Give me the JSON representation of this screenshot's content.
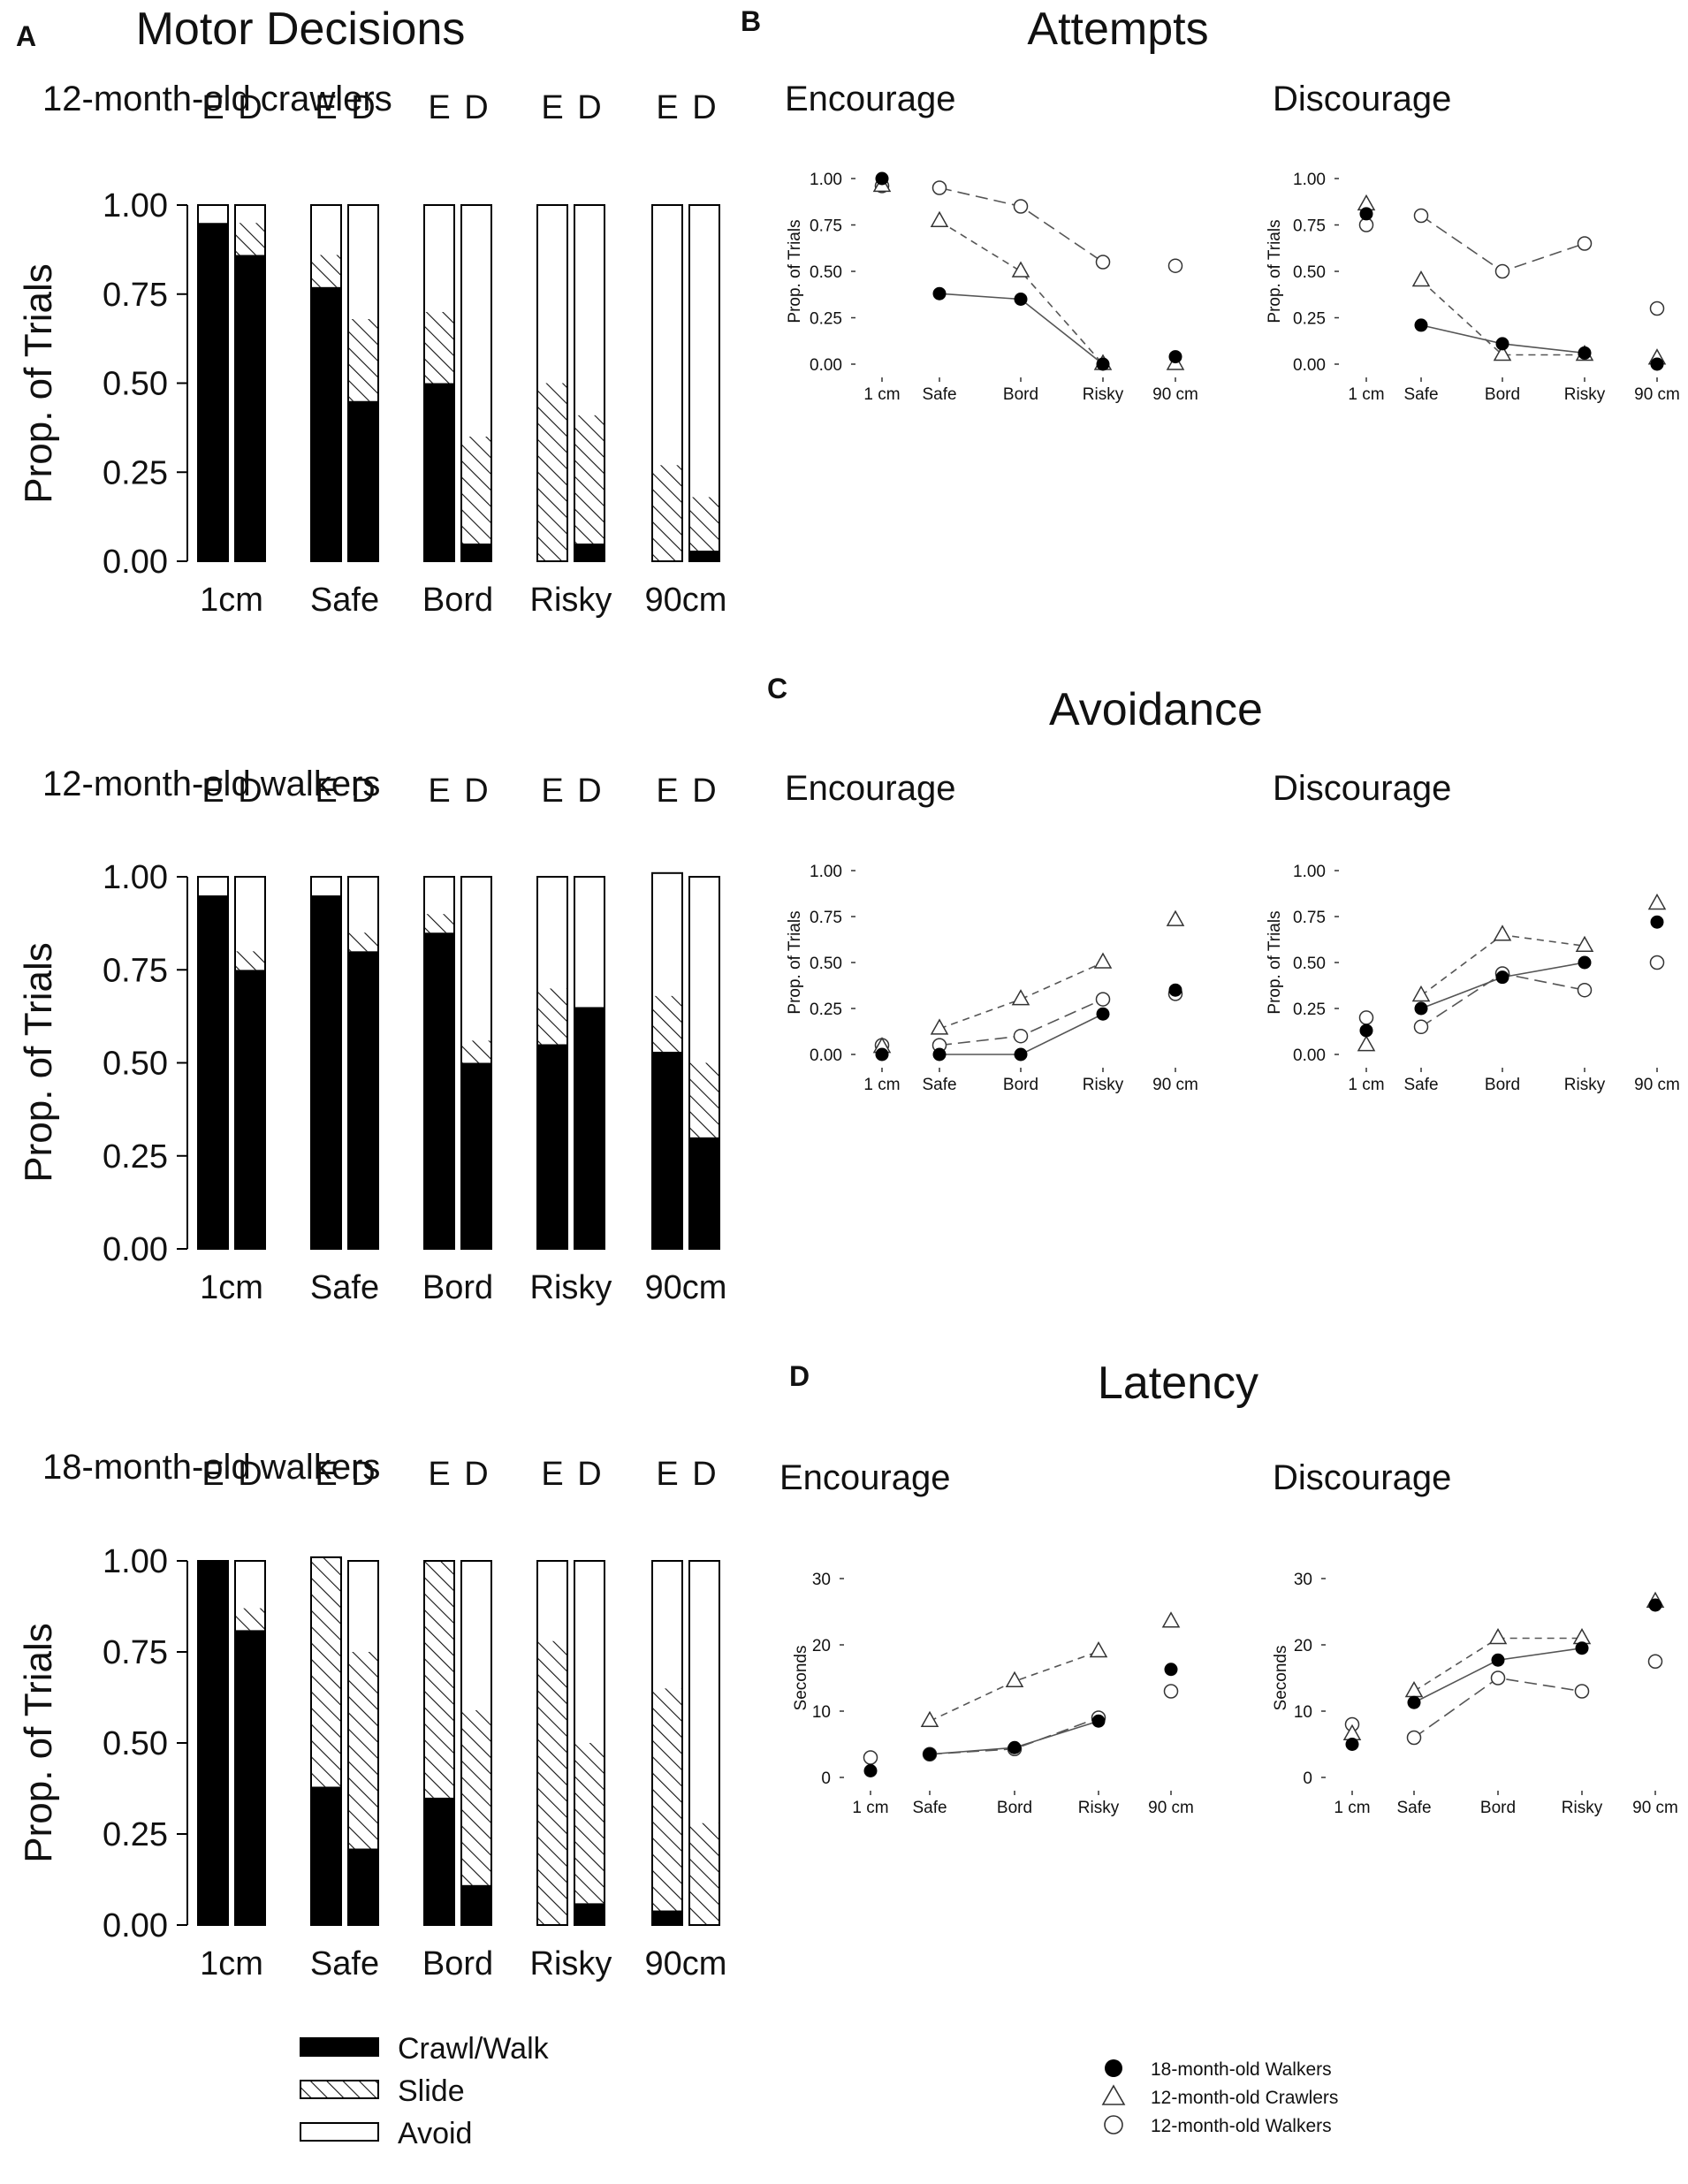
{
  "panels": {
    "A": {
      "letter": "A",
      "title": "Motor Decisions"
    },
    "B": {
      "letter": "B",
      "title": "Attempts"
    },
    "C": {
      "letter": "C",
      "title": "Avoidance"
    },
    "D": {
      "letter": "D",
      "title": "Latency"
    }
  },
  "legend_left": {
    "items": [
      {
        "label": "Crawl/Walk",
        "pattern": "solid"
      },
      {
        "label": "Slide",
        "pattern": "hatch"
      },
      {
        "label": "Avoid",
        "pattern": "empty"
      }
    ]
  },
  "legend_right": {
    "items": [
      {
        "label": "18-month-old Walkers",
        "marker": "filled-circle"
      },
      {
        "label": "12-month-old Crawlers",
        "marker": "open-triangle"
      },
      {
        "label": "12-month-old Walkers",
        "marker": "open-circle"
      }
    ]
  },
  "chart_data": [
    {
      "id": "A1",
      "type": "bar",
      "stacked": true,
      "title": "12-month-old crawlers",
      "ylabel": "Prop. of Trials",
      "ylim": [
        0,
        1
      ],
      "yticks": [
        "0.00",
        "0.25",
        "0.50",
        "0.75",
        "1.00"
      ],
      "categories": [
        "1cm",
        "Safe",
        "Bord",
        "Risky",
        "90cm"
      ],
      "conditions": [
        "E",
        "D"
      ],
      "series": [
        {
          "name": "Crawl/Walk",
          "values": [
            [
              0.95,
              0.86
            ],
            [
              0.77,
              0.45
            ],
            [
              0.5,
              0.05
            ],
            [
              0.0,
              0.05
            ],
            [
              0.0,
              0.03
            ]
          ]
        },
        {
          "name": "Slide",
          "values": [
            [
              0.0,
              0.09
            ],
            [
              0.09,
              0.23
            ],
            [
              0.2,
              0.3
            ],
            [
              0.5,
              0.36
            ],
            [
              0.27,
              0.15
            ]
          ]
        },
        {
          "name": "Avoid",
          "values": [
            [
              0.05,
              0.05
            ],
            [
              0.14,
              0.32
            ],
            [
              0.3,
              0.65
            ],
            [
              0.5,
              0.59
            ],
            [
              0.73,
              0.82
            ]
          ]
        }
      ]
    },
    {
      "id": "A2",
      "type": "bar",
      "stacked": true,
      "title": "12-month-old walkers",
      "ylabel": "Prop. of Trials",
      "ylim": [
        0,
        1
      ],
      "yticks": [
        "0.00",
        "0.25",
        "0.50",
        "0.75",
        "1.00"
      ],
      "categories": [
        "1cm",
        "Safe",
        "Bord",
        "Risky",
        "90cm"
      ],
      "conditions": [
        "E",
        "D"
      ],
      "series": [
        {
          "name": "Crawl/Walk",
          "values": [
            [
              0.95,
              0.75
            ],
            [
              0.95,
              0.8
            ],
            [
              0.85,
              0.5
            ],
            [
              0.55,
              0.65
            ],
            [
              0.53,
              0.3
            ]
          ]
        },
        {
          "name": "Slide",
          "values": [
            [
              0.0,
              0.05
            ],
            [
              0.0,
              0.05
            ],
            [
              0.05,
              0.06
            ],
            [
              0.15,
              0.0
            ],
            [
              0.15,
              0.2
            ]
          ]
        },
        {
          "name": "Avoid",
          "values": [
            [
              0.05,
              0.2
            ],
            [
              0.05,
              0.15
            ],
            [
              0.1,
              0.44
            ],
            [
              0.3,
              0.35
            ],
            [
              0.33,
              0.5
            ]
          ]
        }
      ]
    },
    {
      "id": "A3",
      "type": "bar",
      "stacked": true,
      "title": "18-month-old walkers",
      "ylabel": "Prop. of Trials",
      "ylim": [
        0,
        1
      ],
      "yticks": [
        "0.00",
        "0.25",
        "0.50",
        "0.75",
        "1.00"
      ],
      "categories": [
        "1cm",
        "Safe",
        "Bord",
        "Risky",
        "90cm"
      ],
      "conditions": [
        "E",
        "D"
      ],
      "series": [
        {
          "name": "Crawl/Walk",
          "values": [
            [
              1.0,
              0.81
            ],
            [
              0.38,
              0.21
            ],
            [
              0.35,
              0.11
            ],
            [
              0.0,
              0.06
            ],
            [
              0.04,
              0.0
            ]
          ]
        },
        {
          "name": "Slide",
          "values": [
            [
              0.0,
              0.06
            ],
            [
              0.63,
              0.54
            ],
            [
              0.65,
              0.48
            ],
            [
              0.78,
              0.44
            ],
            [
              0.61,
              0.28
            ]
          ]
        },
        {
          "name": "Avoid",
          "values": [
            [
              0.0,
              0.13
            ],
            [
              0.0,
              0.25
            ],
            [
              0.0,
              0.41
            ],
            [
              0.22,
              0.5
            ],
            [
              0.35,
              0.72
            ]
          ]
        }
      ]
    },
    {
      "id": "B1",
      "type": "line",
      "panel": "Attempts",
      "title": "Encourage",
      "ylabel": "Prop. of Trials",
      "ylim": [
        0,
        1
      ],
      "yticks": [
        "0.00",
        "0.25",
        "0.50",
        "0.75",
        "1.00"
      ],
      "categories": [
        "1 cm",
        "Safe",
        "Bord",
        "Risky",
        "90 cm"
      ],
      "series": [
        {
          "name": "18-month-old Walkers",
          "values": [
            1.0,
            0.38,
            0.35,
            0.0,
            0.04
          ]
        },
        {
          "name": "12-month-old Crawlers",
          "values": [
            0.96,
            0.77,
            0.5,
            0.0,
            0.0
          ]
        },
        {
          "name": "12-month-old Walkers",
          "values": [
            0.96,
            0.95,
            0.85,
            0.55,
            0.53
          ]
        }
      ]
    },
    {
      "id": "B2",
      "type": "line",
      "panel": "Attempts",
      "title": "Discourage",
      "ylabel": "Prop. of Trials",
      "ylim": [
        0,
        1
      ],
      "yticks": [
        "0.00",
        "0.25",
        "0.50",
        "0.75",
        "1.00"
      ],
      "categories": [
        "1 cm",
        "Safe",
        "Bord",
        "Risky",
        "90 cm"
      ],
      "series": [
        {
          "name": "18-month-old Walkers",
          "values": [
            0.81,
            0.21,
            0.11,
            0.06,
            0.0
          ]
        },
        {
          "name": "12-month-old Crawlers",
          "values": [
            0.86,
            0.45,
            0.05,
            0.05,
            0.03
          ]
        },
        {
          "name": "12-month-old Walkers",
          "values": [
            0.75,
            0.8,
            0.5,
            0.65,
            0.3
          ]
        }
      ]
    },
    {
      "id": "C1",
      "type": "line",
      "panel": "Avoidance",
      "title": "Encourage",
      "ylabel": "Prop. of Trials",
      "ylim": [
        0,
        1
      ],
      "yticks": [
        "0.00",
        "0.25",
        "0.50",
        "0.75",
        "1.00"
      ],
      "categories": [
        "1 cm",
        "Safe",
        "Bord",
        "Risky",
        "90 cm"
      ],
      "series": [
        {
          "name": "18-month-old Walkers",
          "values": [
            0.0,
            0.0,
            0.0,
            0.22,
            0.35
          ]
        },
        {
          "name": "12-month-old Crawlers",
          "values": [
            0.04,
            0.14,
            0.3,
            0.5,
            0.73
          ]
        },
        {
          "name": "12-month-old Walkers",
          "values": [
            0.05,
            0.05,
            0.1,
            0.3,
            0.33
          ]
        }
      ]
    },
    {
      "id": "C2",
      "type": "line",
      "panel": "Avoidance",
      "title": "Discourage",
      "ylabel": "Prop. of Trials",
      "ylim": [
        0,
        1
      ],
      "yticks": [
        "0.00",
        "0.25",
        "0.50",
        "0.75",
        "1.00"
      ],
      "categories": [
        "1 cm",
        "Safe",
        "Bord",
        "Risky",
        "90 cm"
      ],
      "series": [
        {
          "name": "18-month-old Walkers",
          "values": [
            0.13,
            0.25,
            0.42,
            0.5,
            0.72
          ]
        },
        {
          "name": "12-month-old Crawlers",
          "values": [
            0.05,
            0.32,
            0.65,
            0.59,
            0.82
          ]
        },
        {
          "name": "12-month-old Walkers",
          "values": [
            0.2,
            0.15,
            0.44,
            0.35,
            0.5
          ]
        }
      ]
    },
    {
      "id": "D1",
      "type": "line",
      "panel": "Latency",
      "title": "Encourage",
      "ylabel": "Seconds",
      "ylim": [
        0,
        30
      ],
      "yticks": [
        "0",
        "10",
        "20",
        "30"
      ],
      "categories": [
        "1 cm",
        "Safe",
        "Bord",
        "Risky",
        "90 cm"
      ],
      "series": [
        {
          "name": "18-month-old Walkers",
          "values": [
            1.0,
            3.5,
            4.5,
            8.5,
            16.3
          ]
        },
        {
          "name": "12-month-old Crawlers",
          "values": [
            null,
            8.5,
            14.5,
            19.0,
            23.5
          ]
        },
        {
          "name": "12-month-old Walkers",
          "values": [
            3.0,
            3.5,
            4.3,
            9.0,
            13.0
          ]
        }
      ]
    },
    {
      "id": "D2",
      "type": "line",
      "panel": "Latency",
      "title": "Discourage",
      "ylabel": "Seconds",
      "ylim": [
        0,
        30
      ],
      "yticks": [
        "0",
        "10",
        "20",
        "30"
      ],
      "categories": [
        "1 cm",
        "Safe",
        "Bord",
        "Risky",
        "90 cm"
      ],
      "series": [
        {
          "name": "18-month-old Walkers",
          "values": [
            5.0,
            11.3,
            17.7,
            19.5,
            26.0
          ]
        },
        {
          "name": "12-month-old Crawlers",
          "values": [
            6.5,
            13.0,
            21.0,
            21.0,
            26.5
          ]
        },
        {
          "name": "12-month-old Walkers",
          "values": [
            8.0,
            6.0,
            15.0,
            13.0,
            17.5
          ]
        }
      ]
    }
  ]
}
